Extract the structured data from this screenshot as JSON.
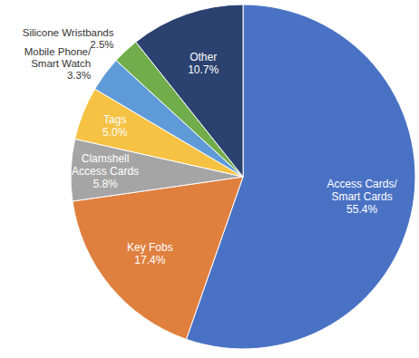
{
  "chart_data": {
    "type": "pie",
    "categories": [
      "Access Cards/\nSmart Cards",
      "Key Fobs",
      "Clamshell\nAccess Cards",
      "Tags",
      "Mobile Phone/\nSmart Watch",
      "Silicone Wristbands",
      "Other"
    ],
    "values": [
      55.4,
      17.4,
      5.8,
      5.0,
      3.3,
      2.5,
      10.7
    ],
    "value_labels": [
      "55.4%",
      "17.4%",
      "5.8%",
      "5.0%",
      "3.3%",
      "2.5%",
      "10.7%"
    ],
    "colors": [
      "#4a72c4",
      "#e0803f",
      "#a5a5a5",
      "#f6c244",
      "#5f9bd8",
      "#72ad4c",
      "#2b4170"
    ],
    "data_labels": true
  }
}
